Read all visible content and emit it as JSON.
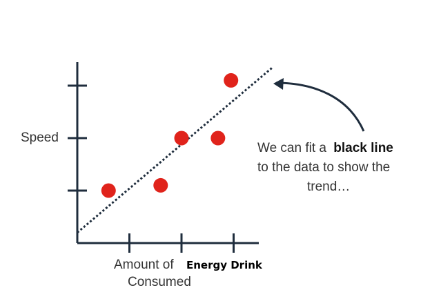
{
  "chart_data": {
    "type": "scatter",
    "title": "",
    "ylabel": "Speed",
    "xlabel": {
      "part1": "Amount of",
      "part2": "Energy Drink",
      "part3": "Consumed"
    },
    "points": [
      {
        "x": 0.6,
        "y": 1.0
      },
      {
        "x": 1.6,
        "y": 1.1
      },
      {
        "x": 2.0,
        "y": 2.0
      },
      {
        "x": 2.7,
        "y": 2.0
      },
      {
        "x": 2.95,
        "y": 3.1
      }
    ],
    "x_ticks": [
      1,
      2,
      3
    ],
    "y_ticks": [
      1,
      2,
      3
    ],
    "xlim": [
      0,
      3.5
    ],
    "ylim": [
      0,
      3.5
    ],
    "trend_line": {
      "x1": 0,
      "y1": 0.2,
      "x2": 3.75,
      "y2": 3.35,
      "style": "dotted"
    },
    "point_color": "#e0231b",
    "annotation": {
      "line1_pre": "We can fit a",
      "line1_bold": "black line",
      "line2": "to the data to show the",
      "line3": "trend…"
    }
  }
}
